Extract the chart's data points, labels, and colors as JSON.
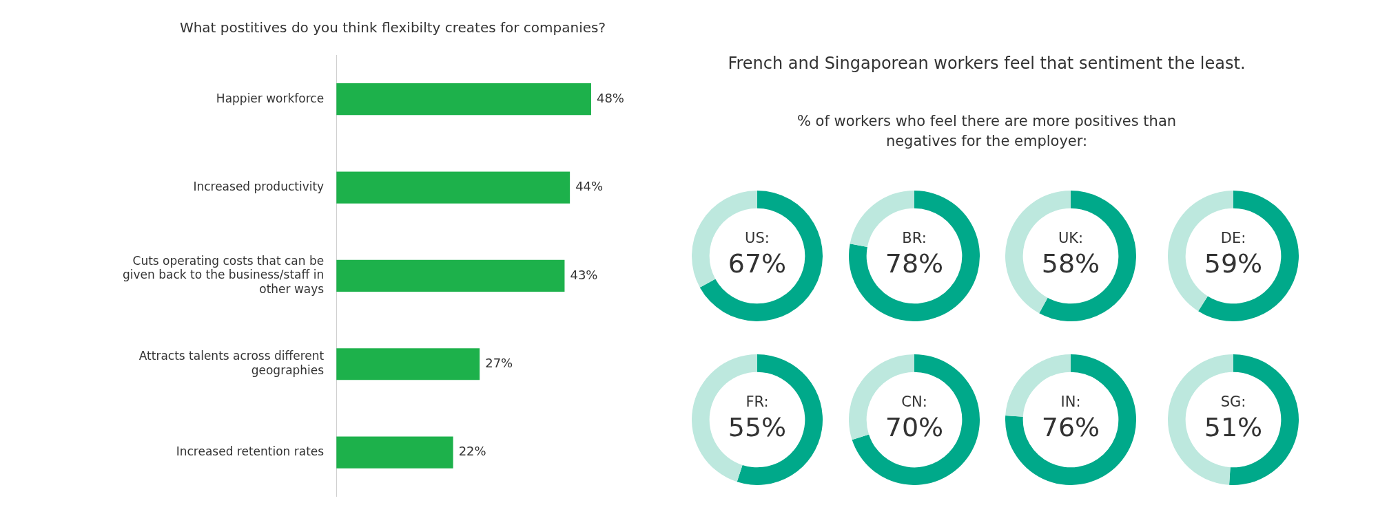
{
  "chart_data": [
    {
      "type": "bar",
      "orientation": "horizontal",
      "title": "What postitives do you think flexibilty creates for companies?",
      "categories": [
        "Happier workforce",
        "Increased productivity",
        "Cuts operating costs that can be given back to the business/staff in other ways",
        "Attracts talents across different geographies",
        "Increased retention rates"
      ],
      "values": [
        48,
        44,
        43,
        27,
        22
      ],
      "value_labels": [
        "48%",
        "44%",
        "43%",
        "27%",
        "22%"
      ],
      "color": "#1db14b",
      "legend": false
    },
    {
      "type": "other",
      "title": "French and Singaporean workers feel that sentiment the least.",
      "subtitle": "% of workers who feel there are more positives than negatives for the employer:"
    },
    {
      "type": "donut",
      "title": "US:",
      "categories": [
        null,
        null
      ],
      "values": [
        67,
        33
      ],
      "value_labels": [
        "67%",
        null
      ],
      "colors": [
        "#00a98a",
        "#bde8de"
      ],
      "legend": false
    },
    {
      "type": "donut",
      "title": "BR:",
      "categories": [
        null,
        null
      ],
      "values": [
        78,
        22
      ],
      "value_labels": [
        "78%",
        null
      ],
      "colors": [
        "#00a98a",
        "#bde8de"
      ],
      "legend": false
    },
    {
      "type": "donut",
      "title": "UK:",
      "categories": [
        null,
        null
      ],
      "values": [
        58,
        42
      ],
      "value_labels": [
        "58%",
        null
      ],
      "colors": [
        "#00a98a",
        "#bde8de"
      ],
      "legend": false
    },
    {
      "type": "donut",
      "title": "DE:",
      "categories": [
        null,
        null
      ],
      "values": [
        59,
        41
      ],
      "value_labels": [
        "59%",
        null
      ],
      "colors": [
        "#00a98a",
        "#bde8de"
      ],
      "legend": false
    },
    {
      "type": "donut",
      "title": "FR:",
      "categories": [
        null,
        null
      ],
      "values": [
        55,
        45
      ],
      "value_labels": [
        "55%",
        null
      ],
      "colors": [
        "#00a98a",
        "#bde8de"
      ],
      "legend": false
    },
    {
      "type": "donut",
      "title": "CN:",
      "categories": [
        null,
        null
      ],
      "values": [
        70,
        30
      ],
      "value_labels": [
        "70%",
        null
      ],
      "colors": [
        "#00a98a",
        "#bde8de"
      ],
      "legend": false
    },
    {
      "type": "donut",
      "title": "IN:",
      "categories": [
        null,
        null
      ],
      "values": [
        76,
        24
      ],
      "value_labels": [
        "76%",
        null
      ],
      "colors": [
        "#00a98a",
        "#bde8de"
      ],
      "legend": false
    },
    {
      "type": "donut",
      "title": "SG:",
      "categories": [
        null,
        null
      ],
      "values": [
        51,
        49
      ],
      "value_labels": [
        "51%",
        null
      ],
      "colors": [
        "#00a98a",
        "#bde8de"
      ],
      "legend": false
    }
  ]
}
